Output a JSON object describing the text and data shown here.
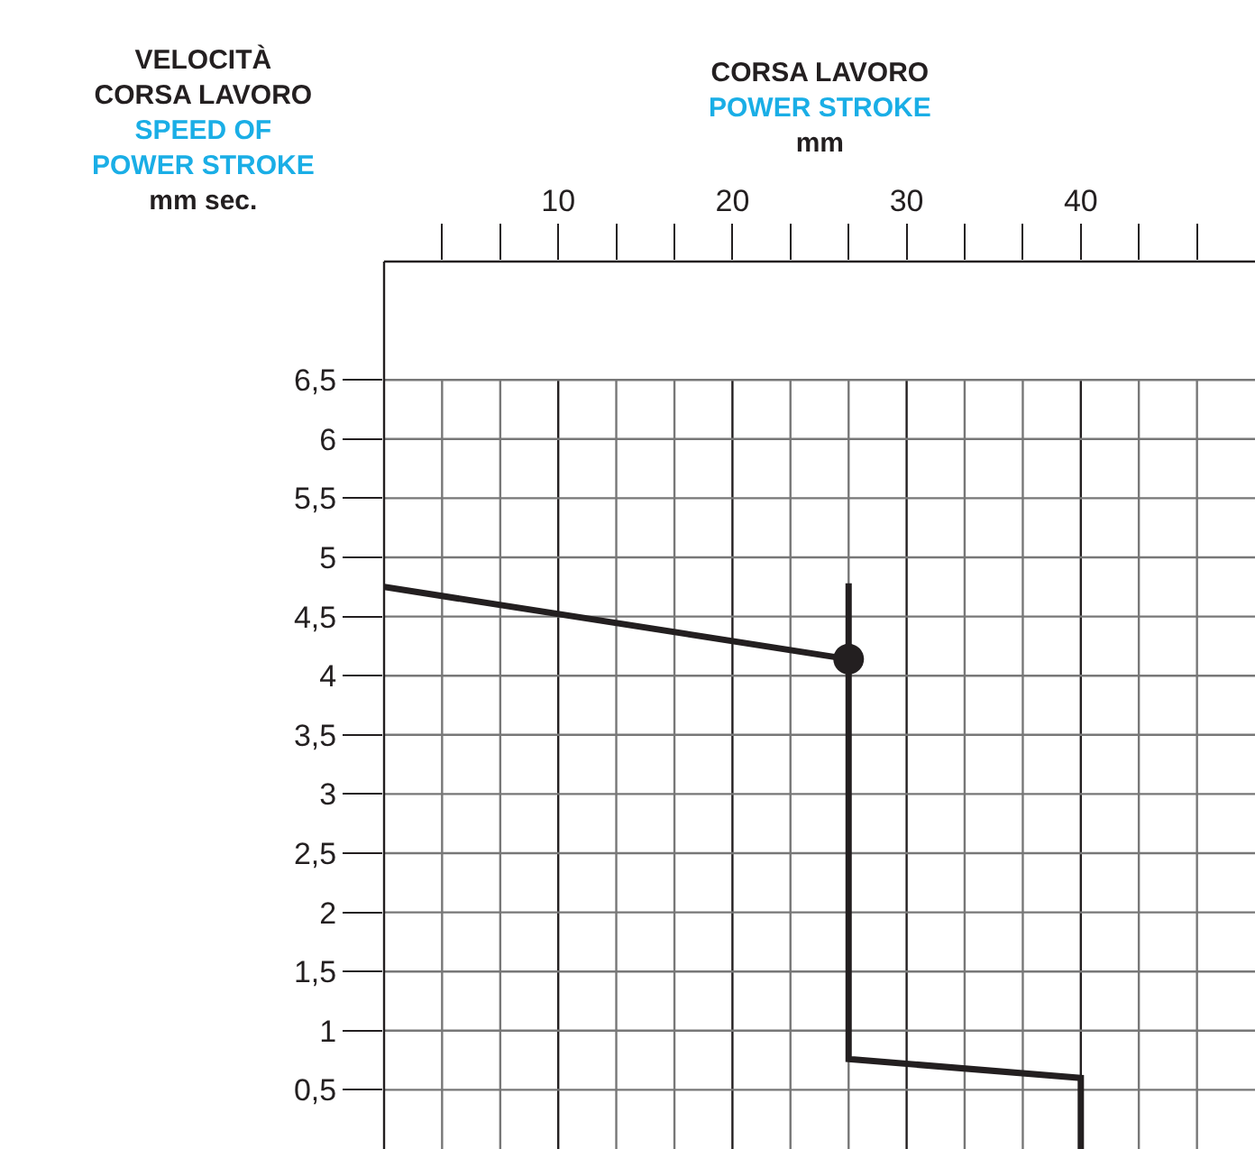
{
  "chart_data": {
    "type": "line",
    "title": "VELOCITÀ\nCORSA LAVORO\nSPEED OF\nPOWER STROKE",
    "ylabel": "mm sec.",
    "xlabel": "CORSA LAVORO\nPOWER STROKE\nmm",
    "xlim": [
      0,
      50
    ],
    "ylim": [
      0,
      7.5
    ],
    "xticks": [
      {
        "value": 3.33,
        "label": null
      },
      {
        "value": 6.67,
        "label": null
      },
      10,
      {
        "value": 13.33,
        "label": null
      },
      {
        "value": 16.67,
        "label": null
      },
      20,
      {
        "value": 23.33,
        "label": null
      },
      {
        "value": 26.67,
        "label": null
      },
      30,
      {
        "value": 33.33,
        "label": null
      },
      {
        "value": 36.67,
        "label": null
      },
      40,
      {
        "value": 43.33,
        "label": null
      },
      {
        "value": 46.67,
        "label": null
      }
    ],
    "yticks": [
      {
        "value": 0.5,
        "label": "0,5"
      },
      1,
      {
        "value": 1.5,
        "label": "1,5"
      },
      2,
      {
        "value": 2.5,
        "label": "2,5"
      },
      3,
      {
        "value": 3.5,
        "label": "3,5"
      },
      4,
      {
        "value": 4.5,
        "label": "4,5"
      },
      5,
      {
        "value": 5.5,
        "label": "5,5"
      },
      6,
      {
        "value": 6.5,
        "label": "6,5"
      }
    ],
    "grid": true,
    "series": [
      {
        "color": "#231f20",
        "x": [
          0,
          26.67
        ],
        "values": [
          4.75,
          4.14
        ]
      },
      {
        "color": "#231f20",
        "x": [
          26.67,
          26.67,
          26.67,
          40,
          40
        ],
        "values": [
          4.78,
          4.14,
          0.76,
          0.6,
          0
        ]
      },
      {
        "type": "scatter",
        "marker": "circle",
        "color": "#231f20",
        "x": [
          26.67
        ],
        "values": [
          4.14
        ]
      }
    ]
  }
}
